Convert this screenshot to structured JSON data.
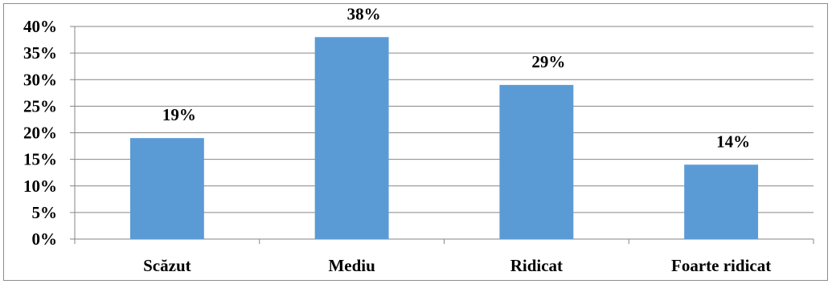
{
  "chart_data": {
    "type": "bar",
    "title": "",
    "xlabel": "",
    "ylabel": "",
    "categories": [
      "Scăzut",
      "Mediu",
      "Ridicat",
      "Foarte ridicat"
    ],
    "values": [
      19,
      38,
      29,
      14
    ],
    "data_labels": [
      "19%",
      "38%",
      "29%",
      "14%"
    ],
    "ylim": [
      0,
      40
    ],
    "yticks": [
      0,
      5,
      10,
      15,
      20,
      25,
      30,
      35,
      40
    ],
    "ytick_labels": [
      "0%",
      "5%",
      "10%",
      "15%",
      "20%",
      "25%",
      "30%",
      "35%",
      "40%"
    ],
    "grid": true,
    "legend": "none",
    "bar_color": "#5b9bd5",
    "grid_color": "#868686"
  }
}
